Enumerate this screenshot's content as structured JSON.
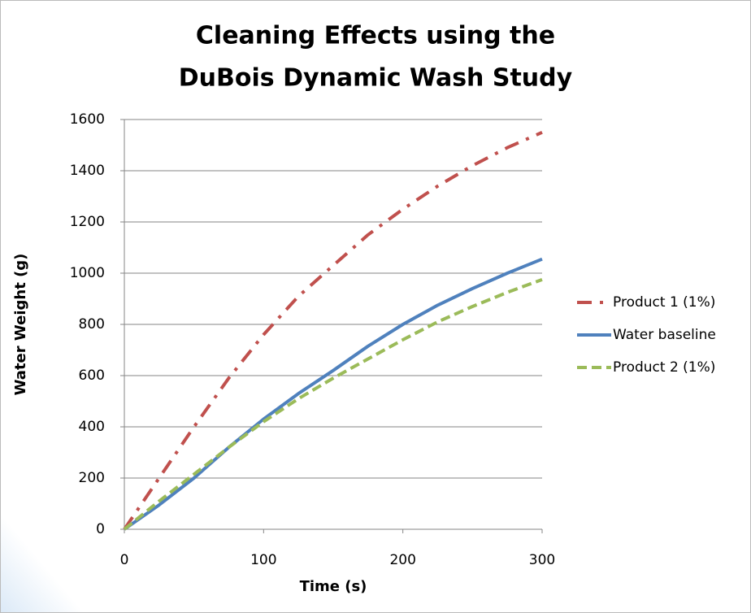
{
  "chart_data": {
    "type": "line",
    "title": [
      "Cleaning Effects using the",
      "DuBois Dynamic Wash Study"
    ],
    "x_label": "Time (s)",
    "y_label": "Water Weight (g)",
    "x": [
      0,
      25,
      50,
      75,
      100,
      125,
      150,
      175,
      200,
      225,
      250,
      275,
      300
    ],
    "series": [
      {
        "name": "Product 1 (1%)",
        "color": "#c0504d",
        "dash": "dashdot",
        "values": [
          0,
          200,
          400,
          590,
          760,
          910,
          1030,
          1150,
          1250,
          1340,
          1420,
          1490,
          1550
        ]
      },
      {
        "name": "Water baseline",
        "color": "#4f81bd",
        "dash": "solid",
        "values": [
          0,
          95,
          200,
          320,
          430,
          530,
          620,
          715,
          800,
          875,
          940,
          1000,
          1055
        ]
      },
      {
        "name": "Product 2 (1%)",
        "color": "#9bbb59",
        "dash": "dashed",
        "values": [
          0,
          110,
          215,
          320,
          420,
          510,
          590,
          665,
          740,
          810,
          870,
          925,
          975
        ]
      }
    ],
    "xlim": [
      0,
      300
    ],
    "xticks": [
      0,
      100,
      200,
      300
    ],
    "ylim": [
      0,
      1600
    ],
    "yticks": [
      0,
      200,
      400,
      600,
      800,
      1000,
      1200,
      1400,
      1600
    ],
    "grid": true,
    "legend": "right"
  }
}
